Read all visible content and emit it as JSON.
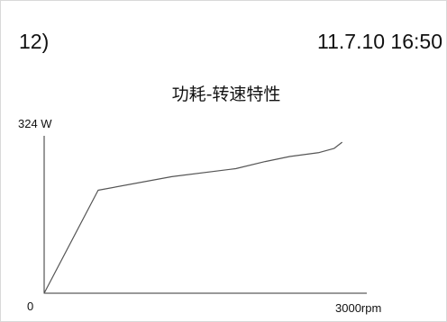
{
  "header": {
    "index": "12)",
    "timestamp": "11.7.10 16:50"
  },
  "chart_data": {
    "type": "line",
    "title": "功耗-转速特性",
    "ylabel": "324 W",
    "xlabel": "3000rpm",
    "origin_label": "0",
    "xlim": [
      0,
      3000
    ],
    "ylim": [
      0,
      324
    ],
    "grid": false,
    "series": [
      {
        "color": "#555555",
        "x": [
          0,
          550,
          1300,
          1950,
          2250,
          2500,
          2800,
          2950,
          3030
        ],
        "y": [
          0,
          205,
          232,
          248,
          262,
          272,
          280,
          288,
          300
        ]
      }
    ]
  }
}
